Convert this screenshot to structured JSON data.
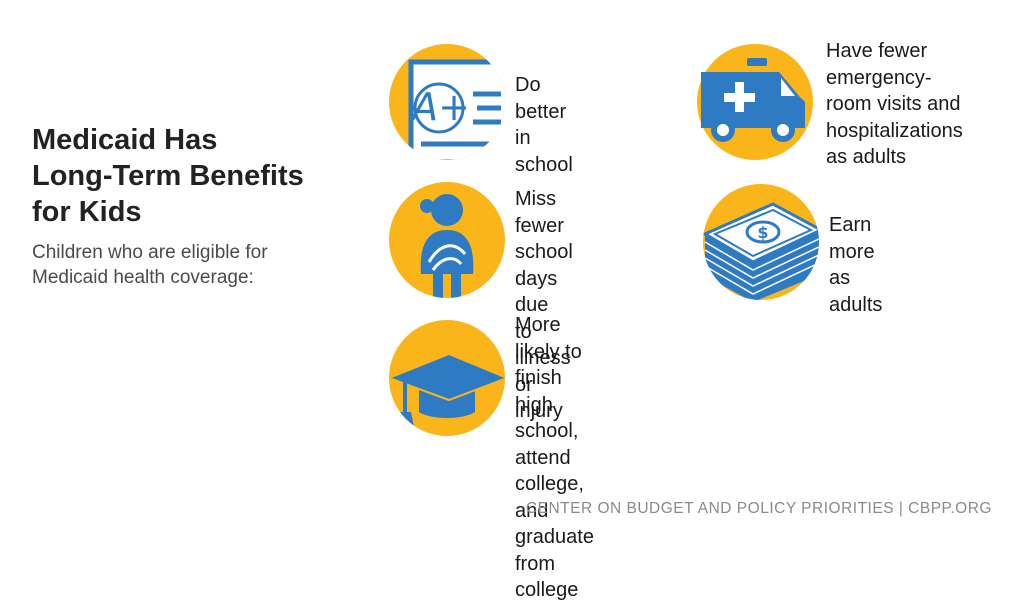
{
  "title": "Medicaid Has\nLong-Term Benefits\nfor Kids",
  "subtitle": "Children who are eligible for\nMedicaid health coverage:",
  "benefits": [
    {
      "icon": "report-card-icon",
      "text": "Do better in\nschool"
    },
    {
      "icon": "ambulance-icon",
      "text": "Have fewer\nemergency-\nroom visits and\nhospitalizations\nas adults"
    },
    {
      "icon": "sick-child-icon",
      "text": "Miss fewer\nschool days due\nto illness or\ninjury"
    },
    {
      "icon": "money-stack-icon",
      "text": "Earn more as\nadults"
    },
    {
      "icon": "graduation-cap-icon",
      "text": "More likely to\nfinish high\nschool, attend\ncollege, and\ngraduate from\ncollege"
    }
  ],
  "footer": "CENTER ON BUDGET AND POLICY PRIORITIES | CBPP.ORG",
  "colors": {
    "circle": "#FAB51A",
    "icon": "#2E7BC4",
    "title": "#222222",
    "footer": "#8A8A8A"
  }
}
